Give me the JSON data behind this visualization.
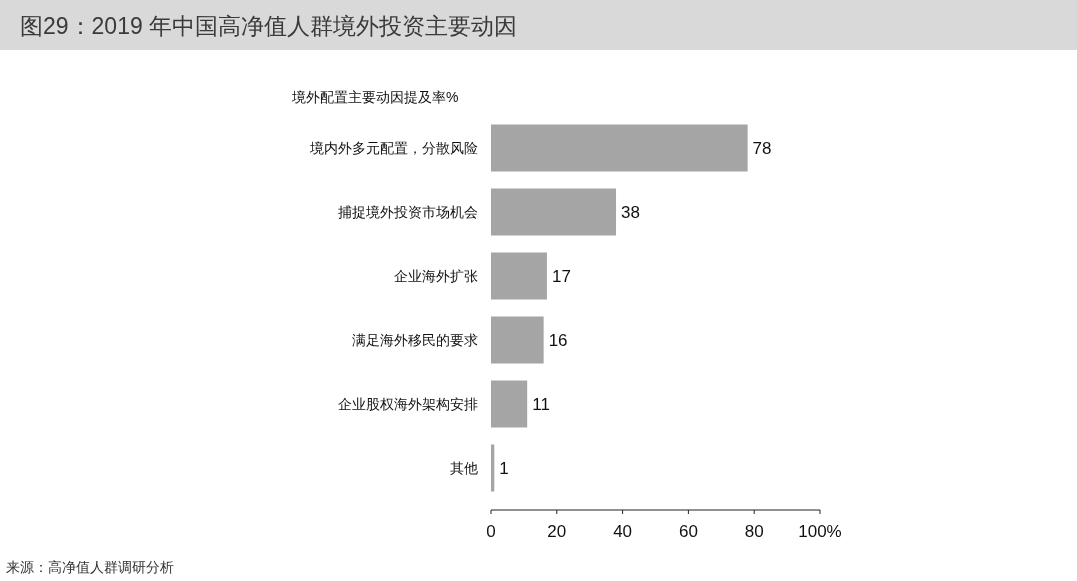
{
  "chart_data": {
    "type": "bar",
    "orientation": "horizontal",
    "title": "图29：2019 年中国高净值人群境外投资主要动因",
    "xlabel": "境外配置主要动因提及率%",
    "categories": [
      "境内外多元配置，分散风险",
      "捕捉境外投资市场机会",
      "企业海外扩张",
      "满足海外移民的要求",
      "企业股权海外架构安排",
      "其他"
    ],
    "values": [
      78,
      38,
      17,
      16,
      11,
      1
    ],
    "color": "#a5a5a5",
    "xlim": [
      0,
      100
    ],
    "xticks": [
      0,
      20,
      40,
      60,
      80,
      {
        "value": 100,
        "label": "100%"
      }
    ],
    "data_labels": true,
    "grid": false,
    "annotations": [
      "来源：高净值人群调研分析"
    ]
  }
}
